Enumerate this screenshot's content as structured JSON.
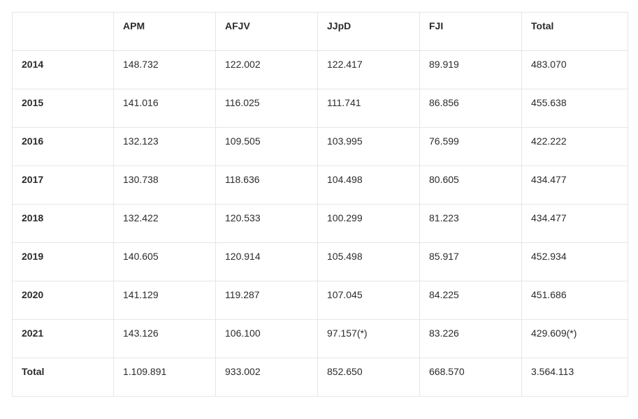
{
  "table": {
    "headers": [
      "",
      "APM",
      "AFJV",
      "JJpD",
      "FJI",
      "Total"
    ],
    "rows": [
      [
        "2014",
        "148.732",
        "122.002",
        "122.417",
        "89.919",
        "483.070"
      ],
      [
        "2015",
        "141.016",
        "116.025",
        "111.741",
        "86.856",
        "455.638"
      ],
      [
        "2016",
        "132.123",
        "109.505",
        "103.995",
        "76.599",
        "422.222"
      ],
      [
        "2017",
        "130.738",
        "118.636",
        "104.498",
        "80.605",
        "434.477"
      ],
      [
        "2018",
        "132.422",
        "120.533",
        "100.299",
        "81.223",
        "434.477"
      ],
      [
        "2019",
        "140.605",
        "120.914",
        "105.498",
        "85.917",
        "452.934"
      ],
      [
        "2020",
        "141.129",
        "119.287",
        "107.045",
        "84.225",
        "451.686"
      ],
      [
        "2021",
        "143.126",
        "106.100",
        "97.157(*)",
        "83.226",
        "429.609(*)"
      ],
      [
        "Total",
        "1.109.891",
        "933.002",
        "852.650",
        "668.570",
        "3.564.113"
      ]
    ]
  }
}
